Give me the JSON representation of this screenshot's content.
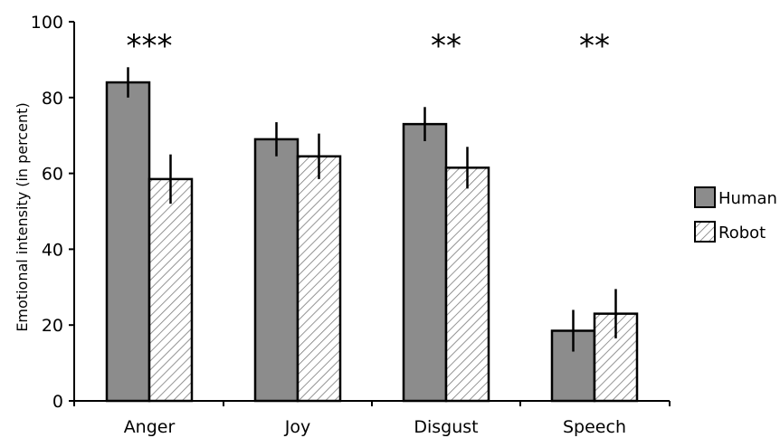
{
  "chart_data": {
    "type": "bar",
    "categories": [
      "Anger",
      "Joy",
      "Disgust",
      "Speech"
    ],
    "series": [
      {
        "name": "Human",
        "values": [
          84,
          69,
          73,
          18.5
        ],
        "errors": [
          4,
          4.5,
          4.5,
          5.5
        ],
        "fill": "#8c8c8c",
        "pattern": "solid"
      },
      {
        "name": "Robot",
        "values": [
          58.5,
          64.5,
          61.5,
          23
        ],
        "errors": [
          6.5,
          6,
          5.5,
          6.5
        ],
        "fill": "#ffffff",
        "pattern": "hatch"
      }
    ],
    "significance": [
      "***",
      "",
      "**",
      "**"
    ],
    "ylabel": "Emotional intensity (in percent)",
    "xlabel": "",
    "ylim": [
      0,
      100
    ],
    "yticks": [
      "0",
      "20",
      "40",
      "60",
      "80",
      "100"
    ],
    "grid": false,
    "legend_position": "right"
  }
}
